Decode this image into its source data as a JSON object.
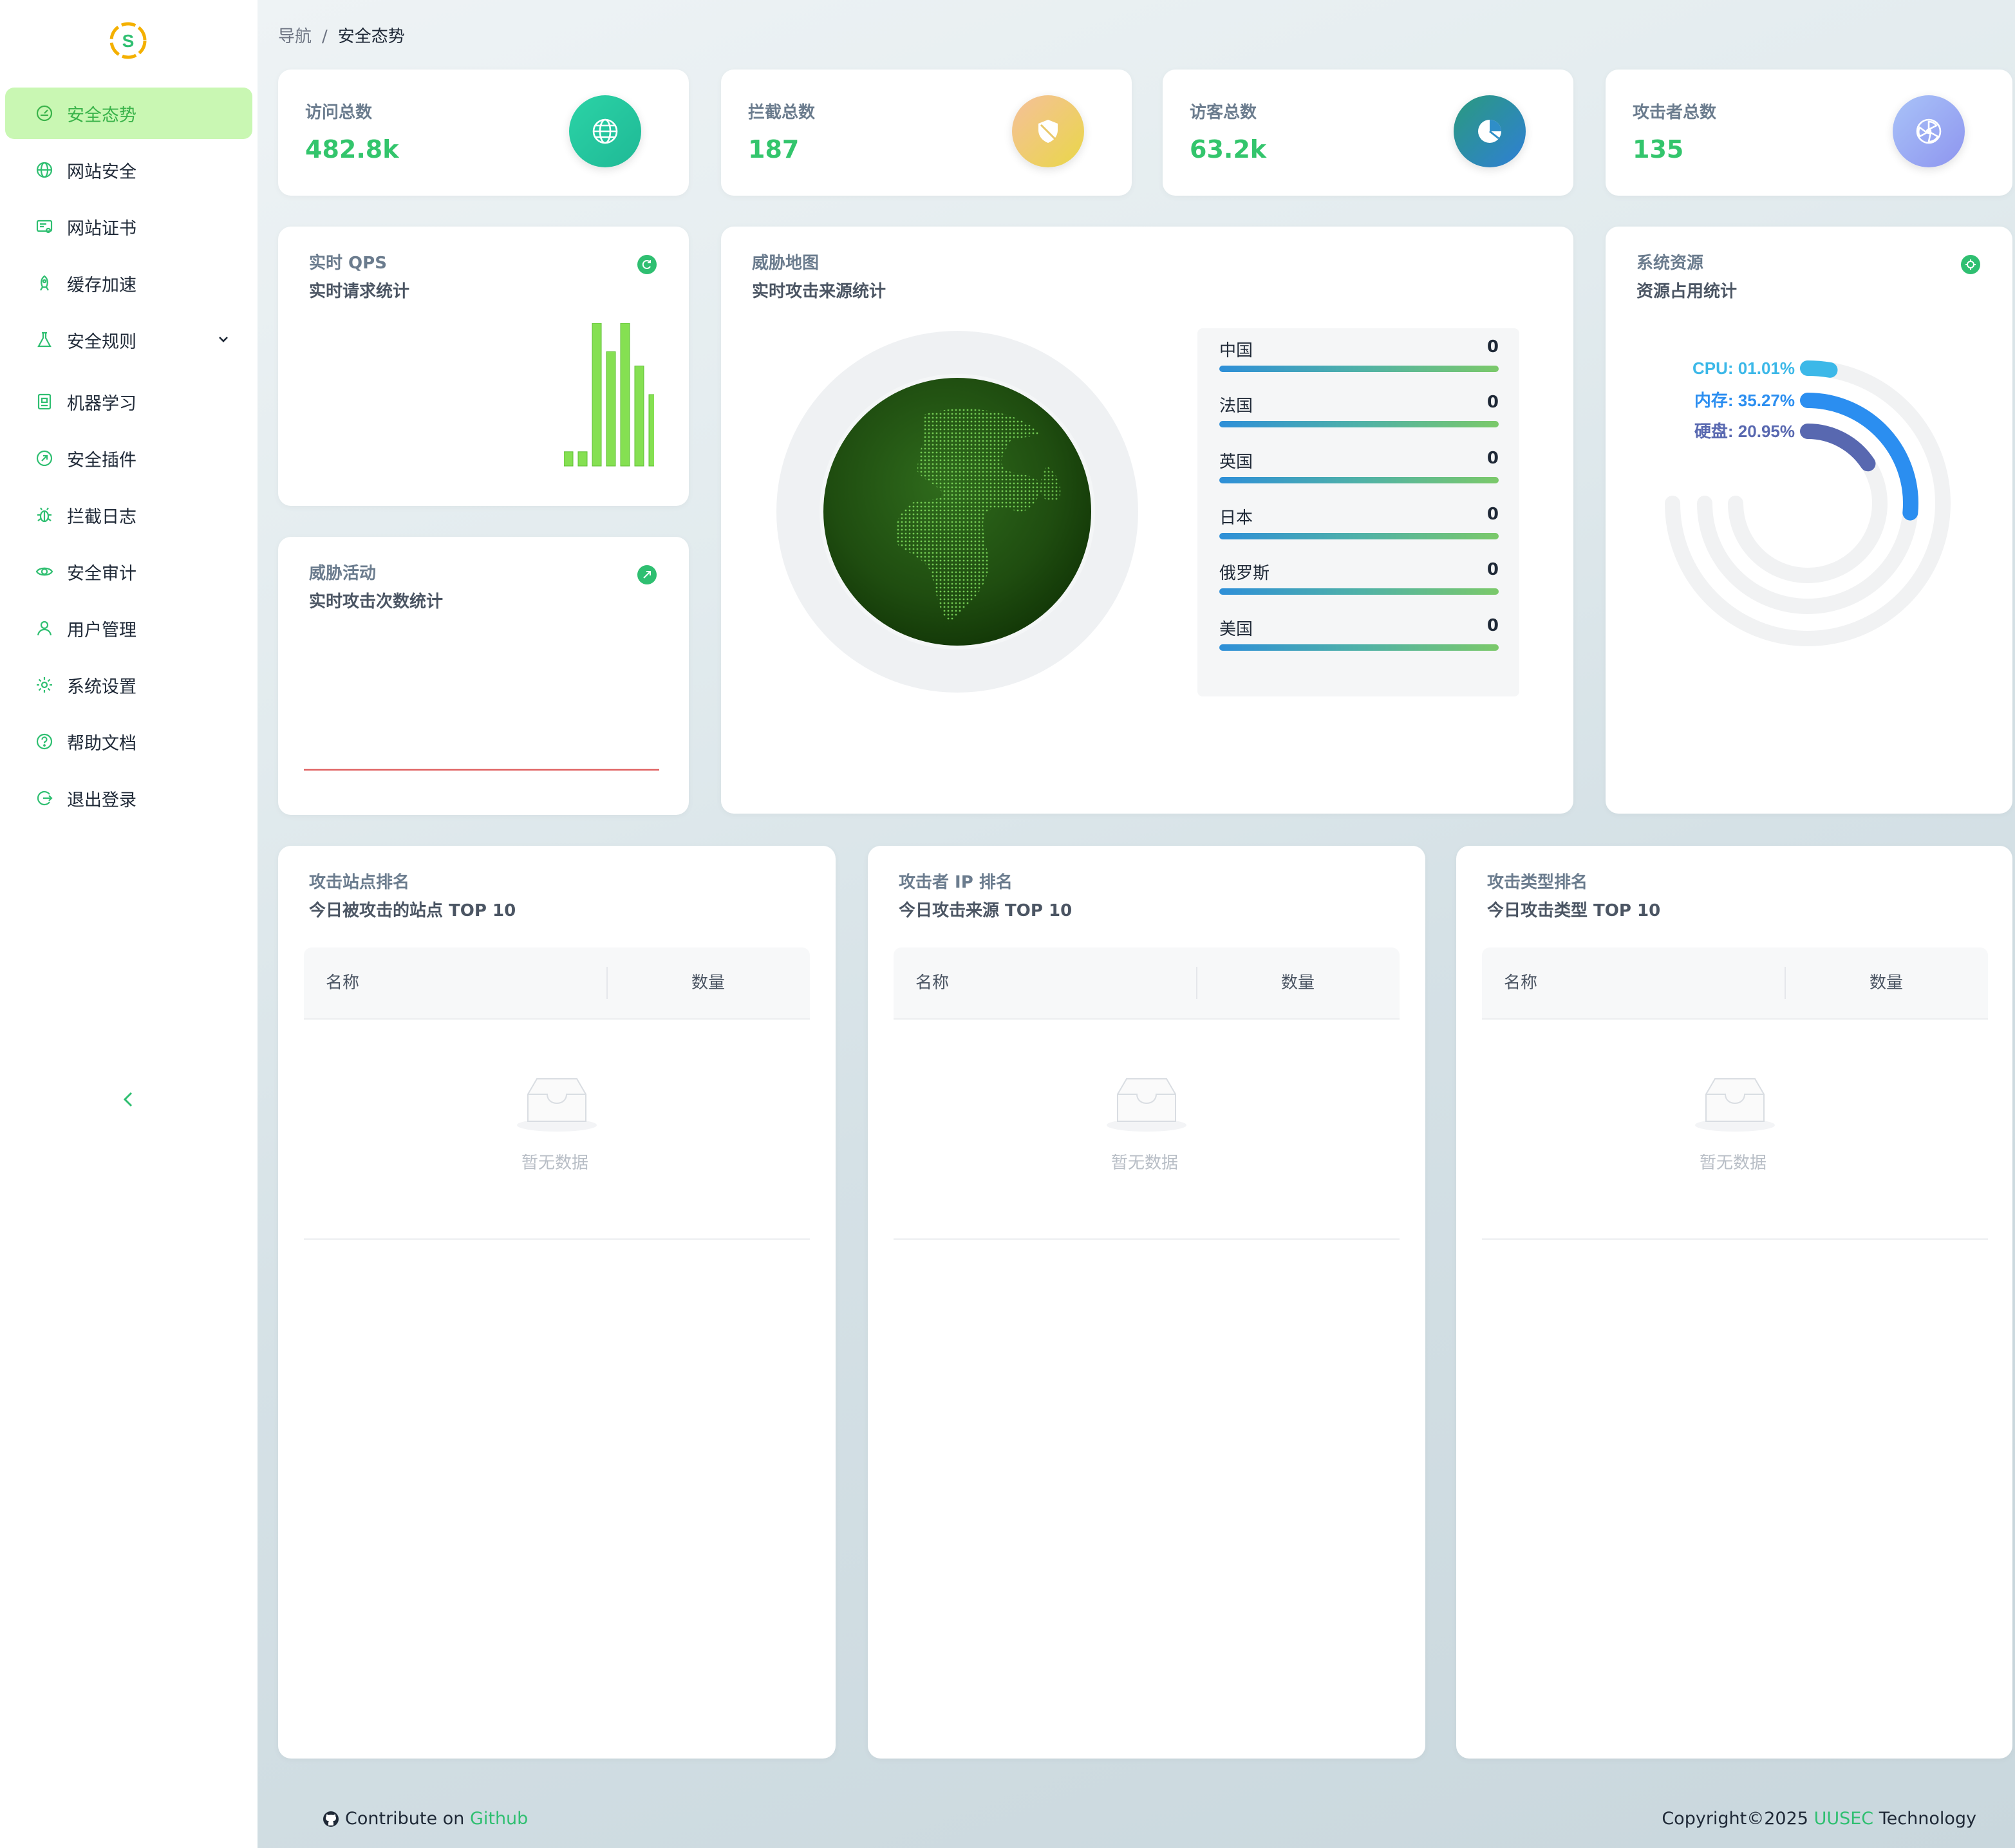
{
  "sidebar": {
    "items": [
      {
        "label": "安全态势",
        "icon": "dashboard-icon",
        "active": true
      },
      {
        "label": "网站安全",
        "icon": "globe-icon"
      },
      {
        "label": "网站证书",
        "icon": "certificate-icon"
      },
      {
        "label": "缓存加速",
        "icon": "rocket-icon"
      },
      {
        "label": "安全规则",
        "icon": "flask-icon",
        "expandable": true
      },
      {
        "label": "机器学习",
        "icon": "ml-icon"
      },
      {
        "label": "安全插件",
        "icon": "plugin-icon"
      },
      {
        "label": "拦截日志",
        "icon": "bug-icon"
      },
      {
        "label": "安全审计",
        "icon": "eye-icon"
      },
      {
        "label": "用户管理",
        "icon": "user-icon"
      },
      {
        "label": "系统设置",
        "icon": "gear-icon"
      },
      {
        "label": "帮助文档",
        "icon": "help-icon"
      },
      {
        "label": "退出登录",
        "icon": "logout-icon"
      }
    ]
  },
  "breadcrumb": {
    "root": "导航",
    "separator": "/",
    "current": "安全态势"
  },
  "stats": [
    {
      "label": "访问总数",
      "value": "482.8k",
      "icon": "globe-icon",
      "color": "#2bc8a0"
    },
    {
      "label": "拦截总数",
      "value": "187",
      "icon": "shield-icon",
      "color": "#f0c84f"
    },
    {
      "label": "访客总数",
      "value": "63.2k",
      "icon": "pie-chart-icon",
      "color": "#2e86c8"
    },
    {
      "label": "攻击者总数",
      "value": "135",
      "icon": "radiation-icon",
      "color": "#9aa8f5"
    }
  ],
  "qps": {
    "title": "实时 QPS",
    "subtitle": "实时请求统计",
    "chart_data": {
      "type": "bar",
      "values": [
        1,
        1,
        10,
        8,
        10,
        7,
        5
      ]
    }
  },
  "threat_activity": {
    "title": "威胁活动",
    "subtitle": "实时攻击次数统计",
    "chart_data": {
      "type": "line",
      "values": [
        0,
        0,
        0,
        0,
        0,
        0,
        0,
        0
      ]
    }
  },
  "threat_map": {
    "title": "威胁地图",
    "subtitle": "实时攻击来源统计",
    "countries": [
      {
        "name": "中国",
        "value": "0"
      },
      {
        "name": "法国",
        "value": "0"
      },
      {
        "name": "英国",
        "value": "0"
      },
      {
        "name": "日本",
        "value": "0"
      },
      {
        "name": "俄罗斯",
        "value": "0"
      },
      {
        "name": "美国",
        "value": "0"
      }
    ]
  },
  "resources": {
    "title": "系统资源",
    "subtitle": "资源占用统计",
    "chart_data": {
      "type": "radial-bar",
      "series": [
        {
          "name": "CPU",
          "label": "CPU: 01.01%",
          "value": 1.01,
          "color": "#3cb8e8"
        },
        {
          "name": "内存",
          "label": "内存: 35.27%",
          "value": 35.27,
          "color": "#2b8ef0"
        },
        {
          "name": "硬盘",
          "label": "硬盘: 20.95%",
          "value": 20.95,
          "color": "#5868b0"
        }
      ]
    }
  },
  "rank_tables": [
    {
      "title": "攻击站点排名",
      "subtitle": "今日被攻击的站点 TOP 10",
      "col_name": "名称",
      "col_count": "数量",
      "empty": "暂无数据"
    },
    {
      "title": "攻击者 IP 排名",
      "subtitle": "今日攻击来源 TOP 10",
      "col_name": "名称",
      "col_count": "数量",
      "empty": "暂无数据"
    },
    {
      "title": "攻击类型排名",
      "subtitle": "今日攻击类型 TOP 10",
      "col_name": "名称",
      "col_count": "数量",
      "empty": "暂无数据"
    }
  ],
  "footer": {
    "contribute_prefix": "Contribute on",
    "contribute_link": "Github",
    "copyright_prefix": "Copyright©2025",
    "company": "UUSEC",
    "copyright_suffix": "Technology"
  },
  "colors": {
    "accent": "#2fbf71",
    "active_bg": "#c9f7b3",
    "bar": "#85e052"
  }
}
